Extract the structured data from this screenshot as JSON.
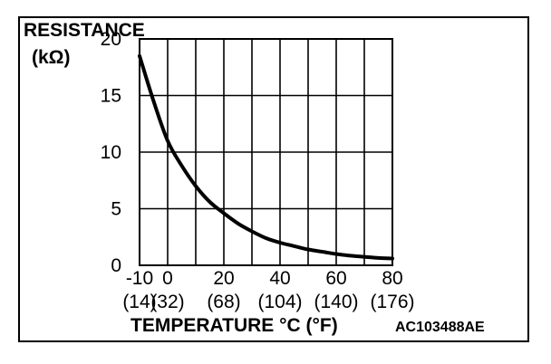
{
  "chart_data": {
    "type": "line",
    "title": "",
    "ylabel_line1": "RESISTANCE",
    "ylabel_line2": "(kΩ)",
    "xlabel": "TEMPERATURE °C (°F)",
    "figure_id": "AC103488AE",
    "xlim": [
      -10,
      80
    ],
    "ylim": [
      0,
      20
    ],
    "x_ticks_c": [
      "-10",
      "0",
      "20",
      "40",
      "60",
      "80"
    ],
    "x_ticks_c_values": [
      -10,
      0,
      20,
      40,
      60,
      80
    ],
    "x_ticks_f": [
      "(14)",
      "(32)",
      "(68)",
      "(104)",
      "(140)",
      "(176)"
    ],
    "y_ticks": [
      "0",
      "5",
      "10",
      "15",
      "20"
    ],
    "y_ticks_values": [
      0,
      5,
      10,
      15,
      20
    ],
    "grid": true,
    "series": [
      {
        "x": [
          -10,
          -5,
          0,
          5,
          10,
          15,
          20,
          25,
          30,
          35,
          40,
          45,
          50,
          55,
          60,
          65,
          70,
          75,
          80
        ],
        "values": [
          18.5,
          14.5,
          11.0,
          8.8,
          7.0,
          5.6,
          4.6,
          3.7,
          3.0,
          2.4,
          2.0,
          1.7,
          1.4,
          1.2,
          1.0,
          0.85,
          0.75,
          0.65,
          0.6
        ]
      }
    ]
  },
  "colors": {
    "line": "#000000",
    "grid": "#000000",
    "background": "#ffffff"
  }
}
